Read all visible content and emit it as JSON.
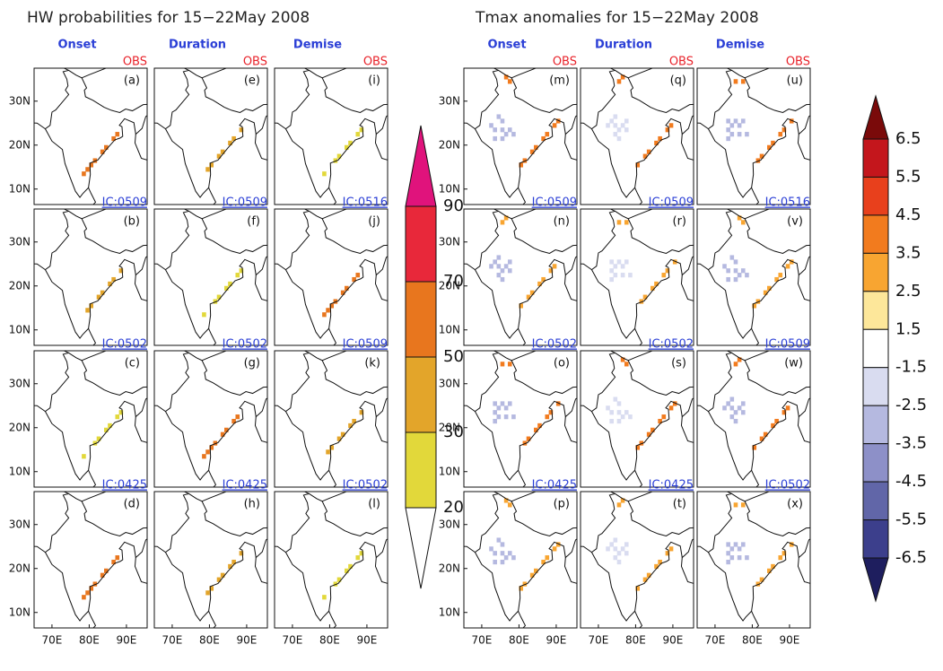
{
  "left": {
    "title": "HW probabilities for 15−22May 2008",
    "columns": [
      "Onset",
      "Duration",
      "Demise"
    ],
    "panels": [
      [
        {
          "letter": "(a)",
          "tag": "OBS"
        },
        {
          "letter": "(e)",
          "tag": "OBS"
        },
        {
          "letter": "(i)",
          "tag": "OBS"
        }
      ],
      [
        {
          "letter": "(b)",
          "tag": "IC:0509"
        },
        {
          "letter": "(f)",
          "tag": "IC:0509"
        },
        {
          "letter": "(j)",
          "tag": "IC:0516"
        }
      ],
      [
        {
          "letter": "(c)",
          "tag": "IC:0502"
        },
        {
          "letter": "(g)",
          "tag": "IC:0502"
        },
        {
          "letter": "(k)",
          "tag": "IC:0509"
        }
      ],
      [
        {
          "letter": "(d)",
          "tag": "IC:0425"
        },
        {
          "letter": "(h)",
          "tag": "IC:0425"
        },
        {
          "letter": "(l)",
          "tag": "IC:0502"
        }
      ]
    ],
    "colorbar": {
      "labels": [
        90,
        70,
        50,
        30,
        20
      ],
      "colors": [
        "#e0137c",
        "#e8283a",
        "#e8761e",
        "#e3a52a",
        "#e2d83a",
        "#ffffff"
      ]
    }
  },
  "right": {
    "title": "Tmax anomalies for 15−22May 2008",
    "columns": [
      "Onset",
      "Duration",
      "Demise"
    ],
    "panels": [
      [
        {
          "letter": "(m)",
          "tag": "OBS"
        },
        {
          "letter": "(q)",
          "tag": "OBS"
        },
        {
          "letter": "(u)",
          "tag": "OBS"
        }
      ],
      [
        {
          "letter": "(n)",
          "tag": "IC:0509"
        },
        {
          "letter": "(r)",
          "tag": "IC:0509"
        },
        {
          "letter": "(v)",
          "tag": "IC:0516"
        }
      ],
      [
        {
          "letter": "(o)",
          "tag": "IC:0502"
        },
        {
          "letter": "(s)",
          "tag": "IC:0502"
        },
        {
          "letter": "(w)",
          "tag": "IC:0509"
        }
      ],
      [
        {
          "letter": "(p)",
          "tag": "IC:0425"
        },
        {
          "letter": "(t)",
          "tag": "IC:0425"
        },
        {
          "letter": "(x)",
          "tag": "IC:0502"
        }
      ]
    ],
    "colorbar": {
      "labels": [
        6.5,
        5.5,
        4.5,
        3.5,
        2.5,
        1.5,
        -1.5,
        -2.5,
        -3.5,
        -4.5,
        -5.5,
        -6.5
      ],
      "colors": [
        "#7a0a0a",
        "#c4161c",
        "#e8401c",
        "#f27b1e",
        "#f8a531",
        "#fde79a",
        "#ffffff",
        "#d9dcf0",
        "#b5b9e0",
        "#8d90c8",
        "#6166a8",
        "#3c3f8c",
        "#1e1e5e"
      ]
    }
  },
  "lat_labels": [
    "30N",
    "20N",
    "10N"
  ],
  "lon_labels": [
    "70E",
    "80E",
    "90E"
  ]
}
